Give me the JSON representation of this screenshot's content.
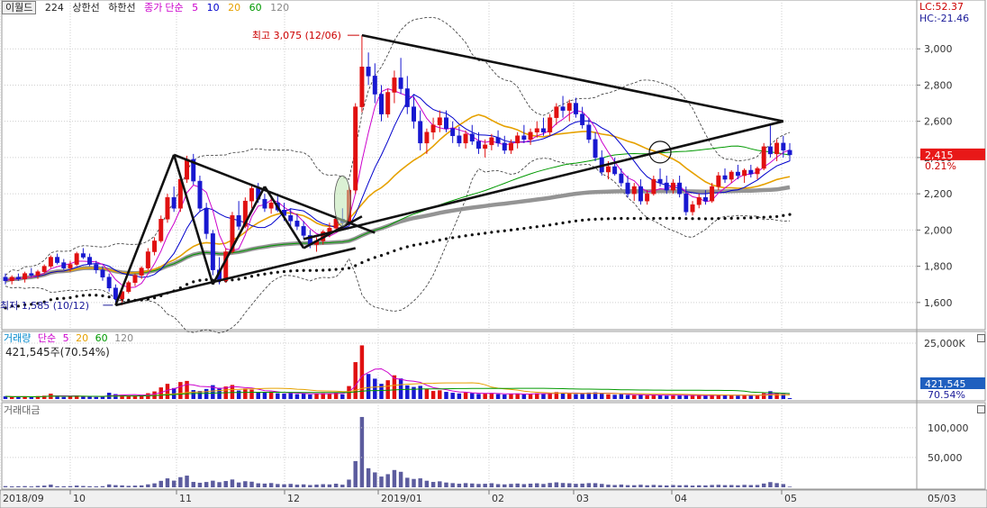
{
  "header": {
    "stock_name": "이월드",
    "bars": "224",
    "upper_limit_label": "상한선",
    "lower_limit_label": "하한선",
    "close_label": "종가",
    "ma_mode": "단순",
    "ma_periods": [
      "5",
      "10",
      "20",
      "60",
      "120"
    ],
    "ma_colors": [
      "#cc00cc",
      "#0000cc",
      "#e6a100",
      "#009900",
      "#888888"
    ]
  },
  "volume_header": {
    "title": "거래량",
    "mode": "단순",
    "periods": [
      "5",
      "20",
      "60",
      "120"
    ],
    "value_text": "421,545주(70.54%)"
  },
  "amount_header": {
    "title": "거래대금"
  },
  "right_labels": {
    "lc": "LC:52.37",
    "hc": "HC:-21.46",
    "price_tag": "2,415",
    "price_pct": "0.21%",
    "volume_tag": "421,545",
    "volume_pct": "70.54%"
  },
  "annotations": {
    "high": "최고 3,075 (12/06)",
    "low": "최저 1,585 (10/12)"
  },
  "chart_data": [
    {
      "type": "candlestick",
      "ylim": [
        1450,
        3200
      ],
      "yticks": [
        "1,600",
        "1,800",
        "2,000",
        "2,200",
        "2,400",
        "2,600",
        "2,800",
        "3,000"
      ],
      "x_ticks": [
        "2018/09",
        "10",
        "11",
        "12",
        "2019/01",
        "02",
        "03",
        "04",
        "05"
      ],
      "x_right_label": "05/03",
      "series": [
        {
          "name": "price",
          "ohlc": [
            [
              1740,
              1760,
              1700,
              1720
            ],
            [
              1720,
              1750,
              1700,
              1740
            ],
            [
              1740,
              1760,
              1720,
              1730
            ],
            [
              1730,
              1770,
              1710,
              1760
            ],
            [
              1760,
              1790,
              1740,
              1750
            ],
            [
              1750,
              1780,
              1730,
              1770
            ],
            [
              1770,
              1810,
              1760,
              1800
            ],
            [
              1800,
              1860,
              1790,
              1850
            ],
            [
              1850,
              1870,
              1810,
              1820
            ],
            [
              1820,
              1840,
              1780,
              1790
            ],
            [
              1790,
              1830,
              1770,
              1810
            ],
            [
              1810,
              1880,
              1800,
              1870
            ],
            [
              1870,
              1900,
              1840,
              1850
            ],
            [
              1850,
              1870,
              1800,
              1810
            ],
            [
              1810,
              1830,
              1760,
              1780
            ],
            [
              1780,
              1800,
              1720,
              1740
            ],
            [
              1740,
              1760,
              1660,
              1680
            ],
            [
              1680,
              1700,
              1600,
              1620
            ],
            [
              1620,
              1680,
              1585,
              1660
            ],
            [
              1660,
              1720,
              1650,
              1710
            ],
            [
              1710,
              1760,
              1690,
              1750
            ],
            [
              1750,
              1800,
              1730,
              1790
            ],
            [
              1790,
              1900,
              1780,
              1880
            ],
            [
              1880,
              1960,
              1860,
              1940
            ],
            [
              1940,
              2080,
              1930,
              2060
            ],
            [
              2060,
              2200,
              2040,
              2180
            ],
            [
              2180,
              2240,
              2100,
              2120
            ],
            [
              2120,
              2300,
              2100,
              2280
            ],
            [
              2280,
              2410,
              2260,
              2390
            ],
            [
              2390,
              2420,
              2250,
              2270
            ],
            [
              2270,
              2300,
              2100,
              2120
            ],
            [
              2120,
              2150,
              1950,
              1980
            ],
            [
              1980,
              2000,
              1750,
              1780
            ],
            [
              1780,
              1850,
              1700,
              1720
            ],
            [
              1720,
              1900,
              1710,
              1880
            ],
            [
              1880,
              2100,
              1870,
              2080
            ],
            [
              2080,
              2160,
              2000,
              2020
            ],
            [
              2020,
              2180,
              2010,
              2160
            ],
            [
              2160,
              2250,
              2120,
              2230
            ],
            [
              2230,
              2260,
              2150,
              2170
            ],
            [
              2170,
              2200,
              2100,
              2120
            ],
            [
              2120,
              2180,
              2090,
              2150
            ],
            [
              2150,
              2200,
              2100,
              2110
            ],
            [
              2110,
              2150,
              2050,
              2080
            ],
            [
              2080,
              2120,
              2020,
              2050
            ],
            [
              2050,
              2090,
              2000,
              2020
            ],
            [
              2020,
              2050,
              1950,
              1970
            ],
            [
              1970,
              2000,
              1900,
              1920
            ],
            [
              1920,
              1960,
              1880,
              1940
            ],
            [
              1940,
              2000,
              1920,
              1990
            ],
            [
              1990,
              2040,
              1960,
              2010
            ],
            [
              2010,
              2080,
              1990,
              2060
            ],
            [
              2060,
              2120,
              2020,
              2040
            ],
            [
              2040,
              2240,
              2030,
              2220
            ],
            [
              2220,
              2700,
              2200,
              2680
            ],
            [
              2680,
              3075,
              2650,
              2900
            ],
            [
              2900,
              2980,
              2800,
              2850
            ],
            [
              2850,
              2920,
              2700,
              2750
            ],
            [
              2750,
              2800,
              2600,
              2640
            ],
            [
              2640,
              2780,
              2620,
              2760
            ],
            [
              2760,
              2880,
              2700,
              2840
            ],
            [
              2840,
              2950,
              2750,
              2780
            ],
            [
              2780,
              2850,
              2640,
              2680
            ],
            [
              2680,
              2740,
              2560,
              2600
            ],
            [
              2600,
              2660,
              2440,
              2480
            ],
            [
              2480,
              2560,
              2420,
              2540
            ],
            [
              2540,
              2620,
              2500,
              2580
            ],
            [
              2580,
              2660,
              2540,
              2620
            ],
            [
              2620,
              2660,
              2540,
              2560
            ],
            [
              2560,
              2600,
              2480,
              2520
            ],
            [
              2520,
              2570,
              2460,
              2480
            ],
            [
              2480,
              2550,
              2450,
              2530
            ],
            [
              2530,
              2580,
              2470,
              2490
            ],
            [
              2490,
              2540,
              2420,
              2450
            ],
            [
              2450,
              2500,
              2400,
              2470
            ],
            [
              2470,
              2530,
              2440,
              2510
            ],
            [
              2510,
              2550,
              2460,
              2480
            ],
            [
              2480,
              2520,
              2420,
              2440
            ],
            [
              2440,
              2500,
              2420,
              2480
            ],
            [
              2480,
              2540,
              2450,
              2520
            ],
            [
              2520,
              2580,
              2480,
              2500
            ],
            [
              2500,
              2560,
              2470,
              2540
            ],
            [
              2540,
              2600,
              2510,
              2560
            ],
            [
              2560,
              2620,
              2520,
              2540
            ],
            [
              2540,
              2640,
              2520,
              2620
            ],
            [
              2620,
              2700,
              2580,
              2680
            ],
            [
              2680,
              2740,
              2620,
              2660
            ],
            [
              2660,
              2720,
              2600,
              2700
            ],
            [
              2700,
              2730,
              2620,
              2640
            ],
            [
              2640,
              2680,
              2560,
              2580
            ],
            [
              2580,
              2620,
              2480,
              2500
            ],
            [
              2500,
              2540,
              2380,
              2400
            ],
            [
              2400,
              2440,
              2300,
              2320
            ],
            [
              2320,
              2380,
              2280,
              2350
            ],
            [
              2350,
              2400,
              2300,
              2310
            ],
            [
              2310,
              2340,
              2240,
              2260
            ],
            [
              2260,
              2300,
              2180,
              2200
            ],
            [
              2200,
              2260,
              2160,
              2240
            ],
            [
              2240,
              2280,
              2140,
              2160
            ],
            [
              2160,
              2220,
              2140,
              2200
            ],
            [
              2200,
              2300,
              2190,
              2280
            ],
            [
              2280,
              2340,
              2240,
              2260
            ],
            [
              2260,
              2300,
              2200,
              2220
            ],
            [
              2220,
              2280,
              2200,
              2260
            ],
            [
              2260,
              2300,
              2180,
              2200
            ],
            [
              2200,
              2240,
              2080,
              2100
            ],
            [
              2100,
              2160,
              2080,
              2140
            ],
            [
              2140,
              2200,
              2120,
              2180
            ],
            [
              2180,
              2220,
              2140,
              2160
            ],
            [
              2160,
              2260,
              2150,
              2240
            ],
            [
              2240,
              2320,
              2220,
              2300
            ],
            [
              2300,
              2340,
              2260,
              2280
            ],
            [
              2280,
              2330,
              2260,
              2320
            ],
            [
              2320,
              2360,
              2280,
              2300
            ],
            [
              2300,
              2340,
              2260,
              2330
            ],
            [
              2330,
              2360,
              2290,
              2310
            ],
            [
              2310,
              2350,
              2280,
              2340
            ],
            [
              2340,
              2480,
              2330,
              2460
            ],
            [
              2460,
              2580,
              2400,
              2420
            ],
            [
              2420,
              2500,
              2380,
              2480
            ],
            [
              2480,
              2520,
              2400,
              2440
            ],
            [
              2440,
              2480,
              2380,
              2415
            ]
          ]
        },
        {
          "name": "upper_band"
        },
        {
          "name": "lower_band"
        }
      ]
    },
    {
      "type": "bar",
      "title": "거래량",
      "yticks": [
        "25,000K"
      ],
      "series": [
        {
          "name": "volume",
          "values": [
            1.2,
            0.9,
            1.0,
            1.1,
            0.8,
            1.3,
            1.5,
            2.4,
            1.0,
            0.9,
            1.1,
            1.6,
            1.2,
            1.0,
            0.9,
            1.1,
            2.8,
            2.2,
            1.9,
            1.4,
            1.6,
            1.8,
            2.6,
            3.4,
            5.2,
            6.8,
            4.9,
            7.6,
            8.1,
            4.0,
            3.6,
            4.5,
            6.2,
            5.0,
            5.6,
            6.3,
            3.8,
            4.7,
            4.2,
            3.1,
            2.9,
            3.3,
            2.6,
            2.4,
            2.8,
            2.2,
            2.5,
            2.0,
            2.3,
            2.6,
            2.4,
            2.9,
            2.1,
            5.8,
            16.5,
            24.0,
            11.2,
            9.1,
            6.8,
            8.4,
            10.6,
            9.2,
            6.1,
            5.4,
            5.9,
            4.4,
            3.6,
            3.9,
            3.2,
            2.8,
            2.5,
            2.9,
            2.6,
            2.3,
            2.4,
            2.7,
            2.2,
            2.0,
            2.3,
            2.5,
            2.1,
            2.4,
            2.6,
            2.2,
            2.8,
            3.1,
            2.7,
            2.5,
            2.2,
            2.4,
            2.9,
            3.0,
            2.6,
            2.1,
            1.9,
            2.2,
            1.8,
            1.7,
            2.0,
            1.6,
            1.9,
            1.7,
            1.5,
            1.8,
            1.6,
            1.7,
            1.4,
            1.6,
            1.5,
            1.8,
            1.9,
            1.6,
            1.7,
            1.5,
            1.8,
            1.6,
            1.7,
            2.6,
            3.5,
            2.8,
            2.2,
            0.42
          ]
        }
      ]
    },
    {
      "type": "bar",
      "title": "거래대금",
      "yticks": [
        "50,000",
        "100,000"
      ],
      "series": [
        {
          "name": "trading_value",
          "values": [
            2,
            1.5,
            1.8,
            2,
            1.4,
            2.3,
            2.8,
            4.5,
            1.8,
            1.7,
            2,
            2.9,
            2.2,
            1.8,
            1.6,
            1.9,
            4.8,
            3.6,
            3.2,
            2.4,
            2.8,
            3.2,
            4.9,
            6.6,
            10.8,
            15,
            11.2,
            17,
            19.6,
            9,
            7.6,
            8.9,
            11.1,
            8.6,
            10.5,
            13.1,
            8.1,
            10.2,
            9.4,
            6.7,
            6.2,
            7.1,
            5.5,
            5,
            5.7,
            4.4,
            4.9,
            3.8,
            4.5,
            5.2,
            4.8,
            6,
            4.4,
            12.9,
            44,
            118,
            32,
            25,
            18,
            22,
            29,
            26,
            16,
            14,
            15,
            11,
            9,
            10,
            8,
            7,
            6,
            7,
            6.4,
            5.6,
            5.9,
            6.8,
            5.3,
            4.9,
            5.7,
            6.3,
            5.3,
            6.1,
            6.7,
            5.6,
            7.3,
            8.3,
            7.2,
            6.7,
            5.8,
            6.2,
            7,
            6.9,
            5.7,
            4.4,
            3.8,
            4.6,
            3.6,
            3.5,
            4.3,
            3.4,
            4,
            3.5,
            3.1,
            3.8,
            3.4,
            3.6,
            2.9,
            3.4,
            3.2,
            3.9,
            4.2,
            3.6,
            3.8,
            3.4,
            4.1,
            3.7,
            3.9,
            6.3,
            8.7,
            7,
            5.4,
            1
          ]
        }
      ]
    }
  ]
}
